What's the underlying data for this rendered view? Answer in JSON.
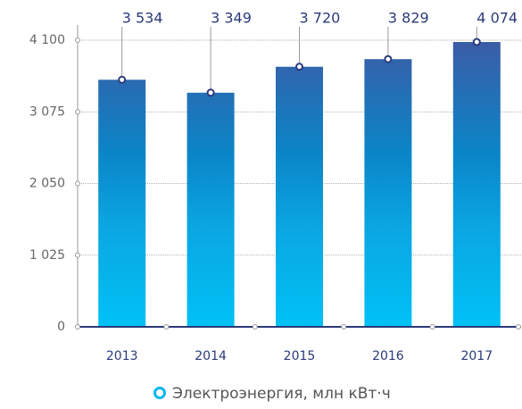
{
  "chart_data": {
    "type": "bar",
    "categories": [
      "2013",
      "2014",
      "2015",
      "2016",
      "2017"
    ],
    "values": [
      3534,
      3349,
      3720,
      3829,
      4074
    ],
    "value_labels": [
      "3 534",
      "3 349",
      "3 720",
      "3 829",
      "4 074"
    ],
    "series_name": "Электроэнергия, млн кВт·ч",
    "color": "#0a86c8",
    "ylim": [
      0,
      4100
    ],
    "yticks": [
      0,
      {
        "value": 1025,
        "label": "1 025"
      },
      {
        "value": 2050,
        "label": "2 050"
      },
      {
        "value": 3075,
        "label": "3 075"
      },
      {
        "value": 4100,
        "label": "4 100"
      }
    ],
    "grid": true
  }
}
